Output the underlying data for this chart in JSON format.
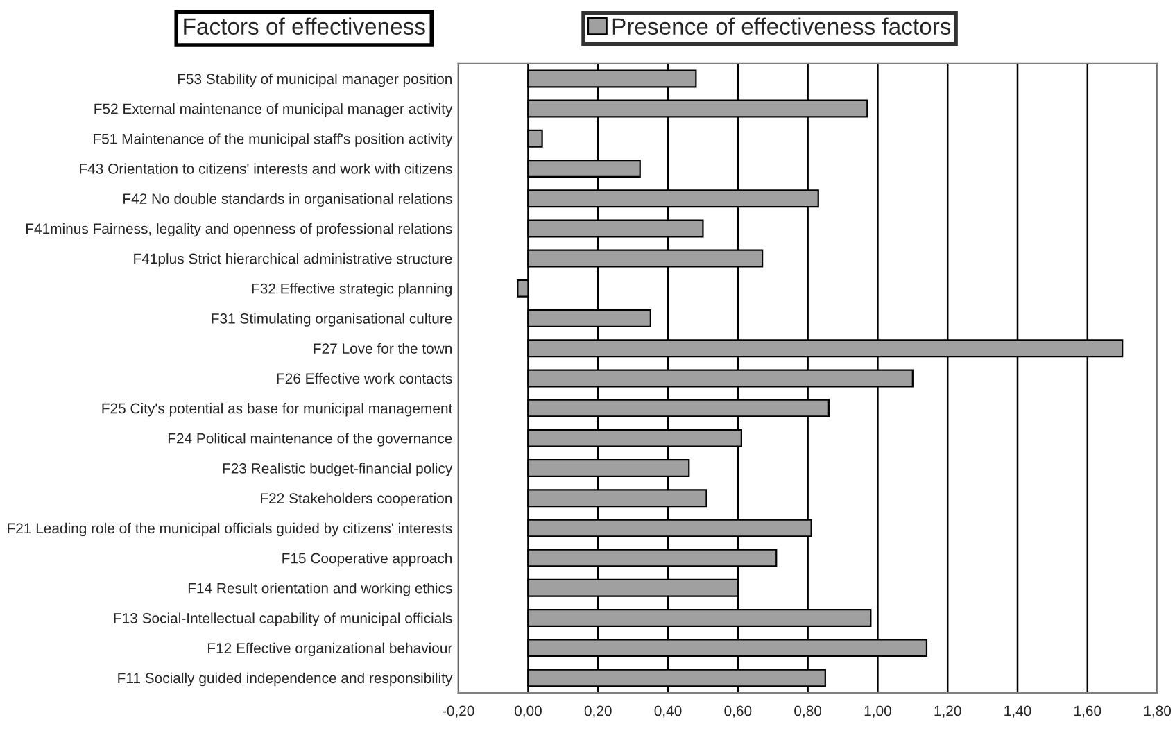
{
  "chart_data": {
    "type": "bar",
    "orientation": "horizontal",
    "ylabel": "Factors of effectiveness",
    "categories": [
      "F53 Stability of municipal manager position",
      "F52 External maintenance of municipal manager activity",
      "F51 Maintenance of the municipal staff's position activity",
      "F43 Orientation to citizens' interests and work with citizens",
      "F42 No double standards in organisational relations",
      "F41minus Fairness, legality and openness of professional relations",
      "F41plus Strict hierarchical administrative structure",
      "F32 Effective strategic planning",
      "F31 Stimulating organisational culture",
      "F27 Love for the town",
      "F26 Effective work contacts",
      "F25 City's potential as base for municipal management",
      "F24 Political maintenance of the governance",
      "F23 Realistic budget-financial policy",
      "F22 Stakeholders cooperation",
      "F21 Leading role of the municipal officials guided by citizens' interests",
      "F15 Cooperative approach",
      "F14 Result orientation and working ethics",
      "F13 Social-Intellectual capability of municipal officials",
      "F12 Effective organizational behaviour",
      "F11 Socially guided independence and responsibility"
    ],
    "series": [
      {
        "name": "Presence of effectiveness factors",
        "color": "#a0a0a0",
        "values": [
          0.48,
          0.97,
          0.04,
          0.32,
          0.83,
          0.5,
          0.67,
          -0.03,
          0.35,
          1.7,
          1.1,
          0.86,
          0.61,
          0.46,
          0.51,
          0.81,
          0.71,
          0.6,
          0.98,
          1.14,
          0.85
        ]
      }
    ],
    "xlim": [
      -0.2,
      1.8
    ],
    "xticks": [
      {
        "value": -0.2,
        "label": "-0,20"
      },
      {
        "value": 0,
        "label": "0,00"
      },
      {
        "value": 0.2,
        "label": "0,20"
      },
      {
        "value": 0.4,
        "label": "0,40"
      },
      {
        "value": 0.6,
        "label": "0,60"
      },
      {
        "value": 0.8,
        "label": "0,80"
      },
      {
        "value": 1.0,
        "label": "1,00"
      },
      {
        "value": 1.2,
        "label": "1,20"
      },
      {
        "value": 1.4,
        "label": "1,40"
      },
      {
        "value": 1.6,
        "label": "1,60"
      },
      {
        "value": 1.8,
        "label": "1,80"
      }
    ],
    "grid": "x",
    "legend": "top"
  }
}
